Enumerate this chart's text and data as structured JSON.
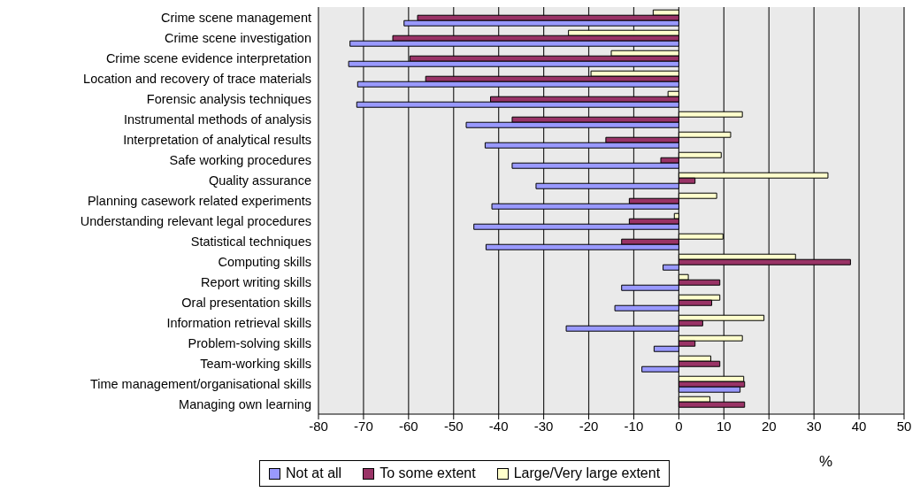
{
  "chart_data": {
    "type": "bar",
    "orientation": "horizontal",
    "xlabel": "%",
    "categories": [
      "Crime scene management",
      "Crime scene investigation",
      "Crime scene evidence interpretation",
      "Location and recovery of trace materials",
      "Forensic analysis techniques",
      "Instrumental methods of analysis",
      "Interpretation of analytical results",
      "Safe working procedures",
      "Quality assurance",
      "Planning casework related experiments",
      "Understanding relevant legal procedures",
      "Statistical techniques",
      "Computing skills",
      "Report writing skills",
      "Oral presentation skills",
      "Information retrieval skills",
      "Problem-solving skills",
      "Team-working skills",
      "Time management/organisational skills",
      "Managing own learning"
    ],
    "series": [
      {
        "name": "Not at all",
        "color": "#9999ff",
        "values": [
          -61,
          -73,
          -73.3,
          -71.3,
          -71.5,
          -47.2,
          -43,
          -37,
          -31.7,
          -41.5,
          -45.5,
          -42.8,
          -3.5,
          -12.7,
          -14.2,
          -25,
          -5.5,
          -8.2,
          13.6,
          null
        ]
      },
      {
        "name": "To some extent",
        "color": "#993366",
        "values": [
          -58,
          -63.5,
          -59.7,
          -56.2,
          -41.8,
          -37,
          -16.2,
          -4,
          3.6,
          -11,
          -11,
          -12.7,
          38.1,
          9.1,
          7.3,
          5.3,
          3.6,
          9.1,
          14.6,
          14.6
        ]
      },
      {
        "name": "Large/Very large extent",
        "color": "#ffffcc",
        "values": [
          -5.7,
          -24.5,
          -15,
          -19.5,
          -2.4,
          14.1,
          11.5,
          9.4,
          33.1,
          8.4,
          -1,
          9.8,
          25.9,
          2.1,
          9.1,
          18.9,
          14.1,
          7.1,
          14.4,
          6.9
        ]
      }
    ],
    "xlim": [
      -80,
      50
    ],
    "xticks": [
      -80,
      -70,
      -60,
      -50,
      -40,
      -30,
      -20,
      -10,
      0,
      10,
      20,
      30,
      40,
      50
    ],
    "grid": "x",
    "legend": "bottom"
  }
}
